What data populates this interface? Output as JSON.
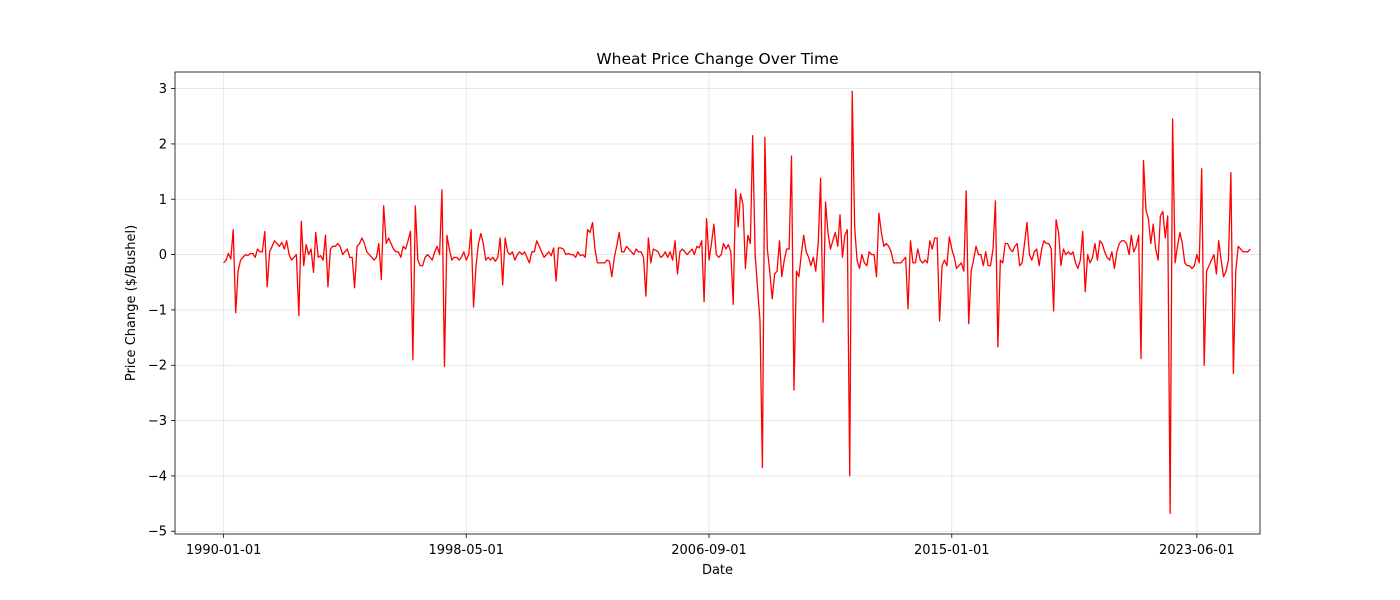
{
  "chart_data": {
    "type": "line",
    "title": "Wheat Price Change Over Time",
    "xlabel": "Date",
    "ylabel": "Price Change ($/Bushel)",
    "xlim": [
      "1988-05-01",
      "2025-08-01"
    ],
    "ylim": [
      -5.05,
      3.3
    ],
    "x_ticks": [
      "1990-01-01",
      "1998-05-01",
      "2006-09-01",
      "2015-01-01",
      "2023-06-01"
    ],
    "y_ticks": [
      -5,
      -4,
      -3,
      -2,
      -1,
      0,
      1,
      2,
      3
    ],
    "y_tick_labels": [
      "−5",
      "−4",
      "−3",
      "−2",
      "−1",
      "0",
      "1",
      "2",
      "3"
    ],
    "grid": true,
    "legend": "none",
    "colors": {
      "line": "#ff0000",
      "background": "#ffffff",
      "grid": "#b0b0b0",
      "axes": "#000000"
    },
    "series": [
      {
        "start": "1990-01-01",
        "frequency": "monthly",
        "values": [
          -0.15,
          -0.1,
          0.02,
          -0.08,
          0.45,
          -1.05,
          -0.3,
          -0.1,
          -0.05,
          0.0,
          -0.02,
          0.02,
          0.02,
          -0.05,
          0.1,
          0.05,
          0.05,
          0.42,
          -0.58,
          0.05,
          0.15,
          0.25,
          0.2,
          0.15,
          0.22,
          0.1,
          0.25,
          0.0,
          -0.1,
          -0.05,
          0.0,
          -1.1,
          0.6,
          -0.2,
          0.18,
          0.0,
          0.1,
          -0.32,
          0.4,
          -0.05,
          -0.02,
          -0.1,
          0.35,
          -0.58,
          0.1,
          0.15,
          0.15,
          0.2,
          0.15,
          0.0,
          0.05,
          0.1,
          -0.05,
          -0.05,
          -0.6,
          0.15,
          0.2,
          0.3,
          0.2,
          0.05,
          0.0,
          -0.05,
          -0.1,
          -0.05,
          0.2,
          -0.45,
          0.88,
          0.2,
          0.3,
          0.2,
          0.1,
          0.05,
          0.05,
          -0.05,
          0.15,
          0.1,
          0.25,
          0.42,
          -1.9,
          0.88,
          -0.1,
          -0.2,
          -0.2,
          -0.05,
          0.0,
          -0.05,
          -0.1,
          0.05,
          0.15,
          0.0,
          1.17,
          -2.02,
          0.35,
          0.1,
          -0.1,
          -0.05,
          -0.05,
          -0.1,
          -0.05,
          0.05,
          -0.1,
          0.0,
          0.45,
          -0.95,
          -0.2,
          0.2,
          0.38,
          0.2,
          -0.1,
          -0.05,
          -0.1,
          -0.05,
          -0.12,
          -0.05,
          0.3,
          -0.55,
          0.3,
          0.05,
          0.0,
          0.05,
          -0.1,
          0.0,
          0.05,
          0.0,
          0.05,
          -0.05,
          -0.15,
          0.05,
          0.05,
          0.25,
          0.15,
          0.05,
          -0.05,
          0.0,
          0.05,
          -0.02,
          0.12,
          -0.48,
          0.12,
          0.12,
          0.1,
          0.0,
          0.02,
          0.0,
          0.0,
          -0.05,
          0.05,
          -0.02,
          0.0,
          -0.05,
          0.45,
          0.4,
          0.58,
          0.1,
          -0.15,
          -0.15,
          -0.15,
          -0.15,
          -0.1,
          -0.12,
          -0.4,
          -0.05,
          0.15,
          0.4,
          0.05,
          0.05,
          0.15,
          0.1,
          0.05,
          0.0,
          0.1,
          0.05,
          0.05,
          -0.05,
          -0.75,
          0.3,
          -0.15,
          0.1,
          0.08,
          0.05,
          -0.05,
          -0.02,
          0.05,
          -0.05,
          0.05,
          -0.1,
          0.25,
          -0.35,
          0.05,
          0.1,
          0.05,
          0.0,
          0.05,
          0.1,
          0.0,
          0.15,
          0.12,
          0.25,
          -0.85,
          0.65,
          -0.1,
          0.2,
          0.55,
          0.0,
          -0.05,
          0.0,
          0.2,
          0.1,
          0.18,
          0.05,
          -0.9,
          1.18,
          0.5,
          1.1,
          0.9,
          -0.25,
          0.35,
          0.2,
          2.15,
          0.0,
          -0.6,
          -1.2,
          -3.85,
          2.12,
          0.1,
          -0.3,
          -0.8,
          -0.35,
          -0.3,
          0.25,
          -0.4,
          -0.1,
          0.1,
          0.1,
          1.78,
          -2.45,
          -0.3,
          -0.4,
          0.0,
          0.35,
          0.05,
          -0.05,
          -0.2,
          -0.05,
          -0.3,
          0.2,
          1.38,
          -1.22,
          0.95,
          0.4,
          0.1,
          0.25,
          0.4,
          0.15,
          0.72,
          -0.05,
          0.35,
          0.45,
          -4.0,
          2.95,
          0.5,
          -0.1,
          -0.25,
          0.0,
          -0.15,
          -0.2,
          0.05,
          0.0,
          0.0,
          -0.4,
          0.75,
          0.4,
          0.15,
          0.2,
          0.15,
          0.05,
          -0.15,
          -0.15,
          -0.15,
          -0.15,
          -0.1,
          -0.05,
          -0.98,
          0.25,
          -0.15,
          -0.15,
          0.1,
          -0.1,
          -0.15,
          -0.1,
          -0.15,
          0.25,
          0.1,
          0.3,
          0.3,
          -1.2,
          -0.2,
          -0.1,
          -0.2,
          0.32,
          0.1,
          -0.05,
          -0.25,
          -0.2,
          -0.15,
          -0.3,
          1.15,
          -1.25,
          -0.3,
          -0.1,
          0.15,
          0.0,
          0.0,
          -0.2,
          0.05,
          -0.2,
          -0.2,
          0.1,
          0.97,
          -1.67,
          -0.1,
          -0.15,
          0.2,
          0.2,
          0.1,
          0.05,
          0.15,
          0.2,
          -0.2,
          -0.15,
          0.2,
          0.58,
          0.0,
          -0.1,
          0.05,
          0.1,
          -0.2,
          0.1,
          0.25,
          0.2,
          0.2,
          0.1,
          -1.02,
          0.63,
          0.4,
          -0.2,
          0.1,
          0.0,
          0.05,
          0.0,
          0.05,
          -0.15,
          -0.25,
          -0.1,
          0.42,
          -0.67,
          0.0,
          -0.15,
          -0.05,
          0.2,
          -0.1,
          0.25,
          0.2,
          0.05,
          -0.05,
          -0.1,
          0.05,
          -0.25,
          0.05,
          0.2,
          0.25,
          0.25,
          0.2,
          0.0,
          0.35,
          0.05,
          0.15,
          0.35,
          -1.88,
          1.7,
          0.8,
          0.65,
          0.2,
          0.55,
          0.1,
          -0.1,
          0.7,
          0.78,
          0.3,
          0.7,
          -4.68,
          2.45,
          -0.15,
          0.15,
          0.4,
          0.2,
          -0.15,
          -0.2,
          -0.2,
          -0.25,
          -0.2,
          0.0,
          -0.15,
          1.55,
          -2.0,
          -0.3,
          -0.2,
          -0.1,
          0.0,
          -0.35,
          0.25,
          -0.1,
          -0.4,
          -0.3,
          -0.1,
          1.48,
          -2.15,
          -0.3,
          0.15,
          0.1,
          0.05,
          0.05,
          0.05,
          0.1
        ]
      }
    ]
  }
}
